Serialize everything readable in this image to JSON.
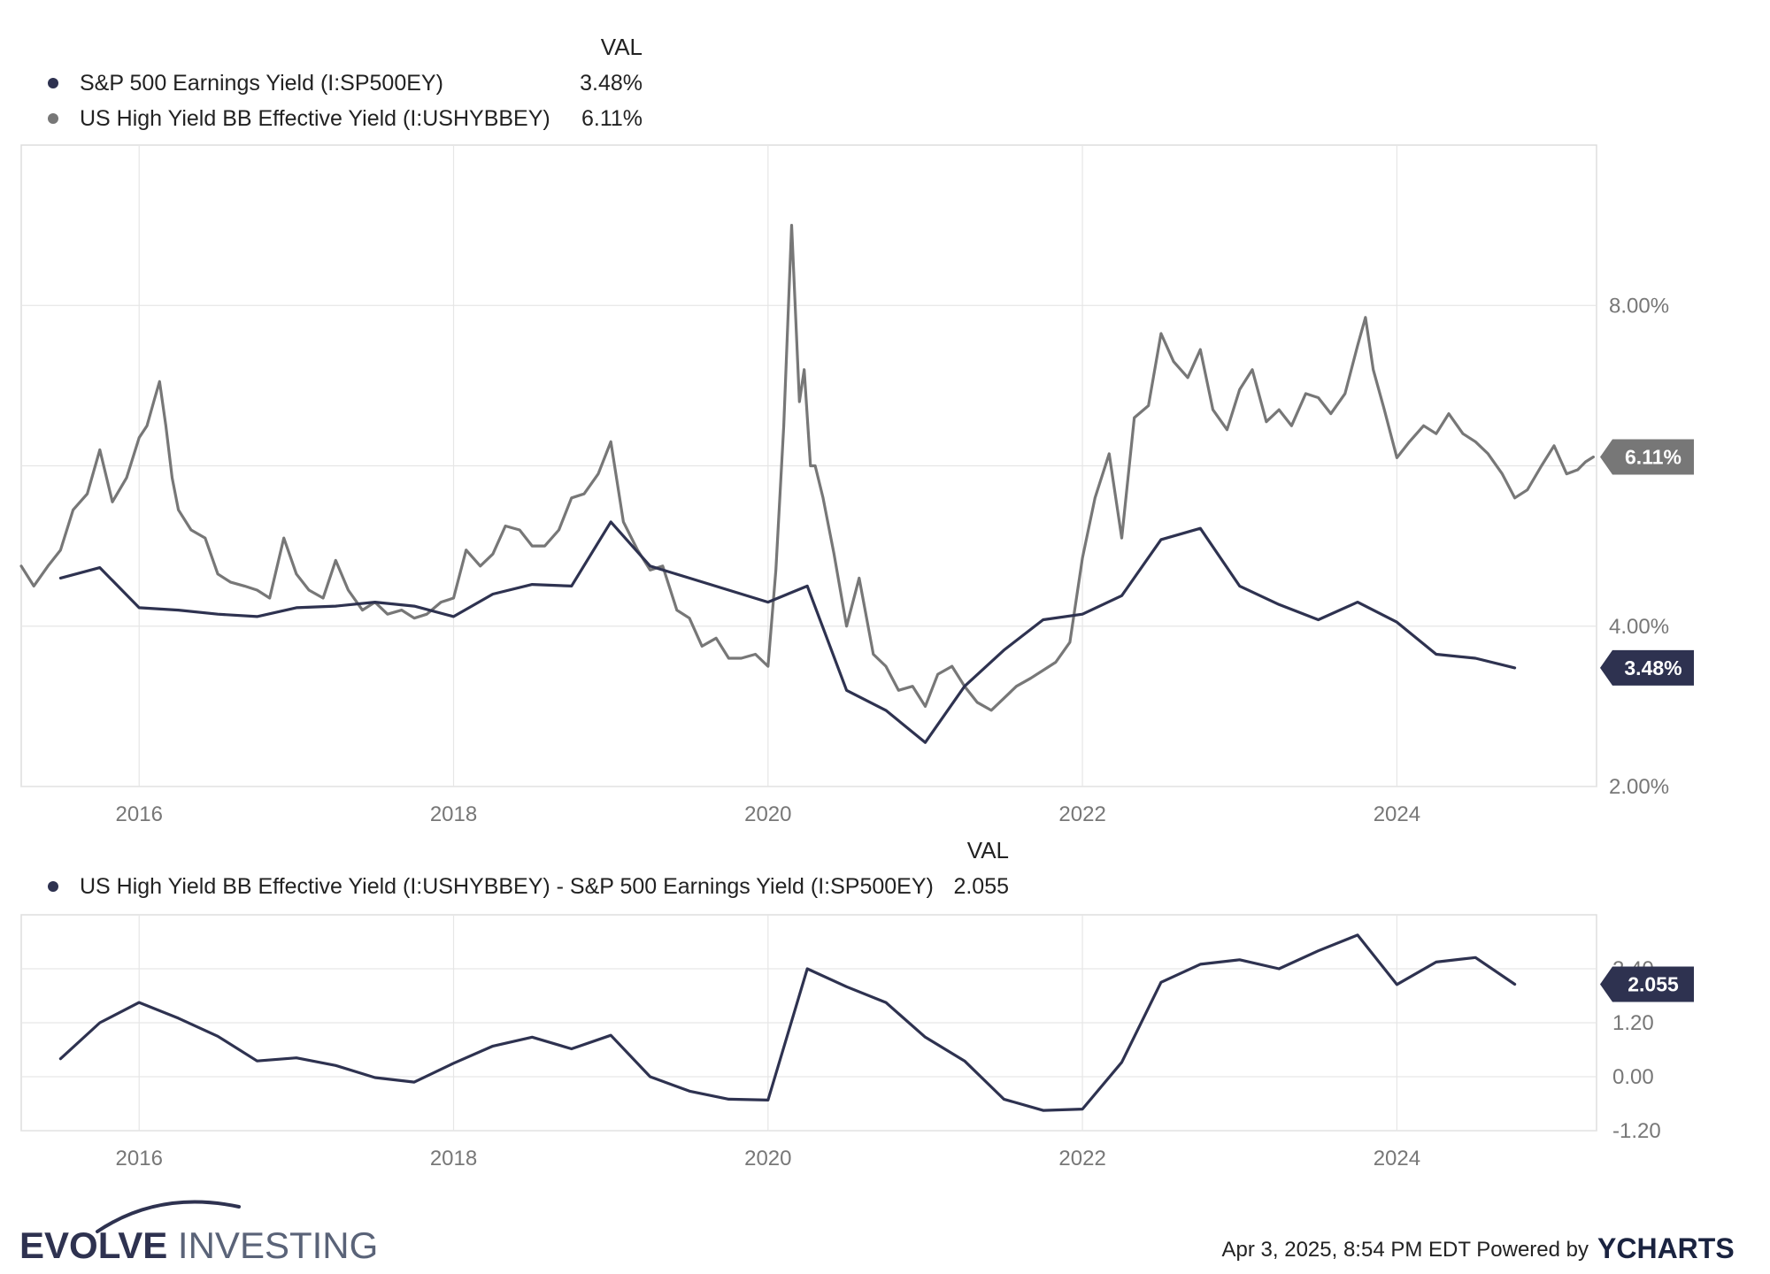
{
  "legend": {
    "val_header": "VAL",
    "items": [
      {
        "label": "S&P 500 Earnings Yield (I:SP500EY)",
        "value": "3.48%",
        "color": "#2e3250"
      },
      {
        "label": "US High Yield BB Effective Yield (I:USHYBBEY)",
        "value": "6.11%",
        "color": "#777777"
      }
    ]
  },
  "legend2": {
    "val_header": "VAL",
    "items": [
      {
        "label": "US High Yield BB Effective Yield (I:USHYBBEY) - S&P 500 Earnings Yield (I:SP500EY)",
        "value": "2.055",
        "color": "#2e3250"
      }
    ]
  },
  "chart_data": [
    {
      "type": "line",
      "title": "",
      "xlim": [
        2015.25,
        2025.27
      ],
      "ylim": [
        2.0,
        10.0
      ],
      "x_ticks": [
        2016,
        2018,
        2020,
        2022,
        2024
      ],
      "x_tick_labels": [
        "2016",
        "2018",
        "2020",
        "2022",
        "2024"
      ],
      "y_ticks": [
        2,
        4,
        8
      ],
      "y_tick_labels": [
        "2.00%",
        "4.00%",
        "8.00%"
      ],
      "grid_y": [
        2,
        4,
        6,
        8
      ],
      "series": [
        {
          "name": "S&P 500 Earnings Yield (I:SP500EY)",
          "color": "#2e3250",
          "last_label": "3.48%",
          "x": [
            2015.5,
            2015.75,
            2016.0,
            2016.25,
            2016.5,
            2016.75,
            2017.0,
            2017.25,
            2017.5,
            2017.75,
            2018.0,
            2018.25,
            2018.5,
            2018.75,
            2019.0,
            2019.25,
            2019.5,
            2019.75,
            2020.0,
            2020.25,
            2020.5,
            2020.75,
            2021.0,
            2021.25,
            2021.5,
            2021.75,
            2022.0,
            2022.25,
            2022.5,
            2022.75,
            2023.0,
            2023.25,
            2023.5,
            2023.75,
            2024.0,
            2024.25,
            2024.5,
            2024.75
          ],
          "values": [
            4.6,
            4.73,
            4.23,
            4.2,
            4.15,
            4.12,
            4.23,
            4.25,
            4.3,
            4.25,
            4.12,
            4.4,
            4.52,
            4.5,
            5.3,
            4.75,
            4.6,
            4.45,
            4.3,
            4.5,
            3.2,
            2.95,
            2.55,
            3.25,
            3.7,
            4.08,
            4.15,
            4.38,
            5.08,
            5.22,
            4.5,
            4.27,
            4.08,
            4.3,
            4.05,
            3.65,
            3.6,
            3.48
          ]
        },
        {
          "name": "US High Yield BB Effective Yield (I:USHYBBEY)",
          "color": "#777777",
          "last_label": "6.11%",
          "x": [
            2015.25,
            2015.33,
            2015.42,
            2015.5,
            2015.58,
            2015.67,
            2015.75,
            2015.83,
            2015.92,
            2016.0,
            2016.05,
            2016.1,
            2016.13,
            2016.17,
            2016.21,
            2016.25,
            2016.33,
            2016.42,
            2016.5,
            2016.58,
            2016.67,
            2016.75,
            2016.83,
            2016.92,
            2017.0,
            2017.08,
            2017.17,
            2017.25,
            2017.33,
            2017.42,
            2017.5,
            2017.58,
            2017.67,
            2017.75,
            2017.83,
            2017.92,
            2018.0,
            2018.08,
            2018.17,
            2018.25,
            2018.33,
            2018.42,
            2018.5,
            2018.58,
            2018.67,
            2018.75,
            2018.83,
            2018.92,
            2019.0,
            2019.08,
            2019.17,
            2019.25,
            2019.33,
            2019.42,
            2019.5,
            2019.58,
            2019.67,
            2019.75,
            2019.83,
            2019.92,
            2020.0,
            2020.05,
            2020.1,
            2020.15,
            2020.2,
            2020.23,
            2020.27,
            2020.3,
            2020.35,
            2020.42,
            2020.5,
            2020.58,
            2020.67,
            2020.75,
            2020.83,
            2020.92,
            2021.0,
            2021.08,
            2021.17,
            2021.25,
            2021.33,
            2021.42,
            2021.5,
            2021.58,
            2021.67,
            2021.75,
            2021.83,
            2021.92,
            2022.0,
            2022.08,
            2022.17,
            2022.25,
            2022.33,
            2022.42,
            2022.5,
            2022.58,
            2022.67,
            2022.75,
            2022.83,
            2022.92,
            2023.0,
            2023.08,
            2023.17,
            2023.25,
            2023.33,
            2023.42,
            2023.5,
            2023.58,
            2023.67,
            2023.75,
            2023.8,
            2023.85,
            2023.92,
            2024.0,
            2024.08,
            2024.17,
            2024.25,
            2024.33,
            2024.42,
            2024.5,
            2024.58,
            2024.67,
            2024.75,
            2024.83,
            2024.92,
            2025.0,
            2025.08,
            2025.15,
            2025.2,
            2025.25
          ],
          "values": [
            4.75,
            4.5,
            4.75,
            4.95,
            5.45,
            5.65,
            6.2,
            5.55,
            5.85,
            6.35,
            6.5,
            6.85,
            7.05,
            6.5,
            5.85,
            5.45,
            5.2,
            5.1,
            4.65,
            4.55,
            4.5,
            4.45,
            4.35,
            5.1,
            4.65,
            4.45,
            4.35,
            4.82,
            4.45,
            4.2,
            4.3,
            4.15,
            4.2,
            4.1,
            4.15,
            4.3,
            4.35,
            4.95,
            4.75,
            4.9,
            5.25,
            5.2,
            5.0,
            5.0,
            5.2,
            5.6,
            5.65,
            5.9,
            6.3,
            5.3,
            4.95,
            4.7,
            4.75,
            4.2,
            4.1,
            3.75,
            3.85,
            3.6,
            3.6,
            3.65,
            3.5,
            4.7,
            6.5,
            9.0,
            6.8,
            7.2,
            6.0,
            6.0,
            5.6,
            4.9,
            4.0,
            4.6,
            3.65,
            3.5,
            3.2,
            3.25,
            3.0,
            3.4,
            3.5,
            3.25,
            3.05,
            2.95,
            3.1,
            3.25,
            3.35,
            3.45,
            3.55,
            3.8,
            4.85,
            5.6,
            6.15,
            5.1,
            6.6,
            6.75,
            7.65,
            7.3,
            7.1,
            7.45,
            6.7,
            6.45,
            6.95,
            7.2,
            6.55,
            6.7,
            6.5,
            6.9,
            6.85,
            6.65,
            6.9,
            7.5,
            7.85,
            7.2,
            6.7,
            6.1,
            6.3,
            6.5,
            6.4,
            6.65,
            6.4,
            6.3,
            6.15,
            5.9,
            5.6,
            5.7,
            6.0,
            6.25,
            5.9,
            5.95,
            6.05,
            6.11
          ]
        }
      ]
    },
    {
      "type": "line",
      "title": "",
      "xlim": [
        2015.25,
        2025.27
      ],
      "ylim": [
        -1.2,
        3.6
      ],
      "x_ticks": [
        2016,
        2018,
        2020,
        2022,
        2024
      ],
      "x_tick_labels": [
        "2016",
        "2018",
        "2020",
        "2022",
        "2024"
      ],
      "y_ticks": [
        -1.2,
        0.0,
        1.2,
        2.4
      ],
      "y_tick_labels": [
        "-1.20",
        "0.00",
        "1.20",
        "2.40"
      ],
      "series": [
        {
          "name": "US High Yield BB Effective Yield (I:USHYBBEY) - S&P 500 Earnings Yield (I:SP500EY)",
          "color": "#2e3250",
          "last_label": "2.055",
          "x": [
            2015.5,
            2015.75,
            2016.0,
            2016.25,
            2016.5,
            2016.75,
            2017.0,
            2017.25,
            2017.5,
            2017.75,
            2018.0,
            2018.25,
            2018.5,
            2018.75,
            2019.0,
            2019.25,
            2019.5,
            2019.75,
            2020.0,
            2020.25,
            2020.5,
            2020.75,
            2021.0,
            2021.25,
            2021.5,
            2021.75,
            2022.0,
            2022.25,
            2022.5,
            2022.75,
            2023.0,
            2023.25,
            2023.5,
            2023.75,
            2024.0,
            2024.25,
            2024.5,
            2024.75
          ],
          "values": [
            0.4,
            1.2,
            1.65,
            1.3,
            0.9,
            0.35,
            0.42,
            0.25,
            -0.02,
            -0.12,
            0.3,
            0.68,
            0.88,
            0.62,
            0.92,
            0.0,
            -0.32,
            -0.5,
            -0.52,
            2.4,
            2.0,
            1.65,
            0.88,
            0.35,
            -0.5,
            -0.75,
            -0.72,
            0.32,
            2.1,
            2.5,
            2.6,
            2.4,
            2.8,
            3.15,
            2.05,
            2.55,
            2.65,
            2.055
          ]
        }
      ]
    }
  ],
  "footer": {
    "brand_bold": "EVOLVE",
    "brand_rest": " INVESTING",
    "timestamp": "Apr 3, 2025, 8:54 PM EDT",
    "powered_by": "Powered by",
    "ycharts_logo": "YCHARTS"
  }
}
